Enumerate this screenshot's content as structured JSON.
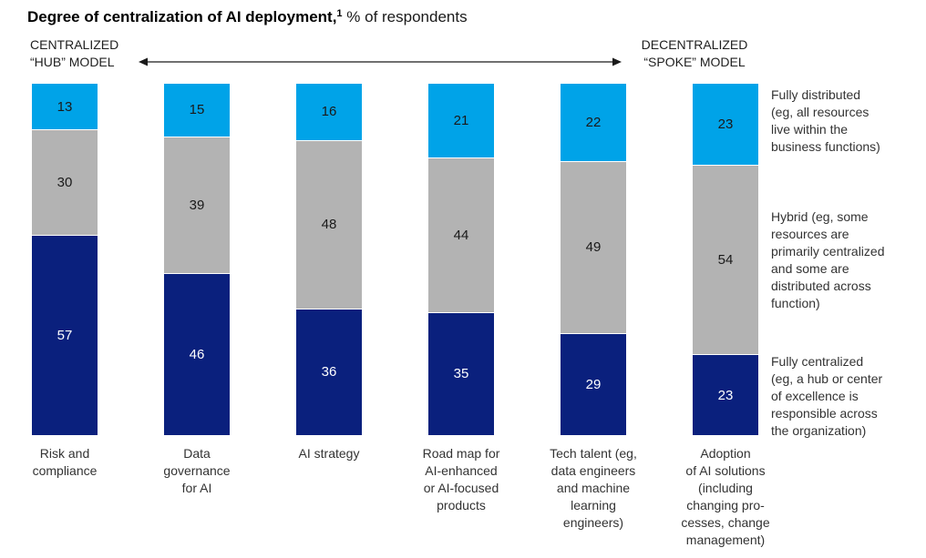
{
  "title": {
    "bold": "Degree of centralization of AI deployment,",
    "sup": "1",
    "regular": " % of respondents"
  },
  "axis": {
    "left": "CENTRALIZED\n“HUB” MODEL",
    "right": "DECENTRALIZED\n“SPOKE” MODEL"
  },
  "chart_data": {
    "type": "bar",
    "stacked": true,
    "orientation": "vertical",
    "unit": "% of respondents",
    "ylim": [
      0,
      100
    ],
    "grid": false,
    "legend_position": "right",
    "categories": [
      "Risk and compliance",
      "Data governance for AI",
      "AI strategy",
      "Road map for AI-enhanced or AI-focused products",
      "Tech talent (eg, data engineers and machine learning engineers)",
      "Adoption of AI solutions (including changing processes, change management)"
    ],
    "category_display": [
      "Risk and\ncompliance",
      "Data\ngovernance\nfor AI",
      "AI strategy",
      "Road map for\nAI-enhanced\nor AI-focused\nproducts",
      "Tech talent (eg,\ndata engineers\nand machine\nlearning\nengineers)",
      "Adoption\nof AI solutions\n(including\nchanging pro-\ncesses, change\nmanagement)"
    ],
    "series": [
      {
        "key": "fully-distributed",
        "name": "Fully distributed (eg, all resources live within the business functions)",
        "color": "#00A3E8",
        "text_color": "#1a1a1a",
        "values": [
          13,
          15,
          16,
          21,
          22,
          23
        ]
      },
      {
        "key": "hybrid",
        "name": "Hybrid (eg, some resources are primarily centralized and some are distributed across function)",
        "color": "#B3B3B3",
        "text_color": "#1a1a1a",
        "values": [
          30,
          39,
          48,
          44,
          49,
          54
        ]
      },
      {
        "key": "fully-centralized",
        "name": "Fully centralized (eg, a hub or center of excellence is responsible across the organization)",
        "color": "#0A207D",
        "text_color": "#ffffff",
        "values": [
          57,
          46,
          36,
          35,
          29,
          23
        ]
      }
    ],
    "legend": [
      {
        "label": "Fully distributed\n(eg, all resources\nlive within the\nbusiness functions)"
      },
      {
        "label": "Hybrid (eg, some\nresources are\nprimarily centralized\nand some are\ndistributed across\nfunction)"
      },
      {
        "label": "Fully centralized\n(eg, a hub or center\nof excellence is\nresponsible across\nthe organization)"
      }
    ]
  }
}
